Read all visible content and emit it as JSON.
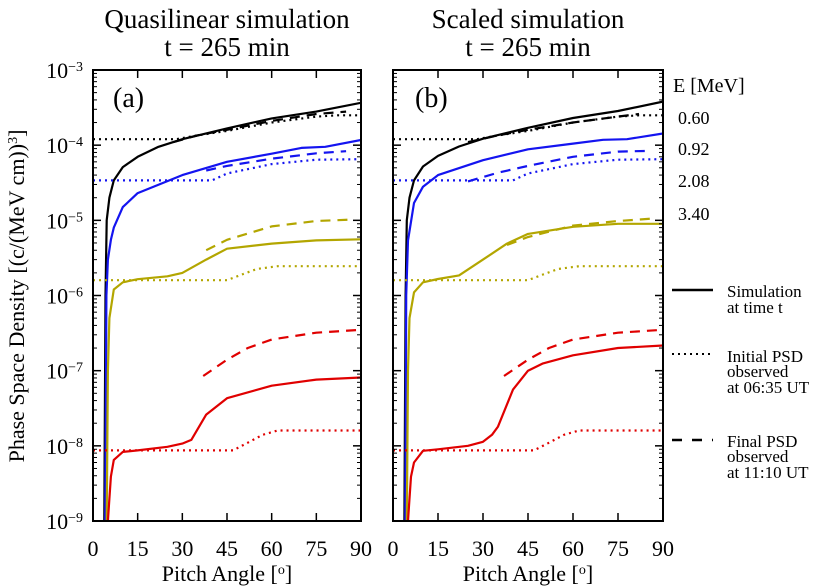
{
  "colors": {
    "0.60": "#000000",
    "0.92": "#1414f0",
    "2.08": "#b3a600",
    "3.40": "#e00000"
  },
  "legend": {
    "energy_header": "E [MeV]",
    "energies": [
      "0.60",
      "0.92",
      "2.08",
      "3.40"
    ],
    "simulation": [
      "Simulation",
      "at time t"
    ],
    "initial": [
      "Initial PSD",
      "observed",
      "at 06:35 UT"
    ],
    "final": [
      "Final PSD",
      "observed",
      "at 11:10 UT"
    ]
  },
  "ylabel": "Phase Space Density [(c/(MeV cm))",
  "ylabel_sup": "3",
  "ylabel_end": "]",
  "xlabel": "Pitch Angle [",
  "xlabel_sup": "o",
  "xlabel_end": "]",
  "chart_data": [
    {
      "type": "line",
      "panel_label": "(a)",
      "title": [
        "Quasilinear simulation",
        "t = 265 min"
      ],
      "x_ticks": [
        "0",
        "15",
        "30",
        "45",
        "60",
        "75",
        "90"
      ],
      "xlim": [
        0,
        90
      ],
      "ylim": [
        1e-09,
        0.001
      ],
      "yscale": "log",
      "y_tick_labels": [
        {
          "base": "10",
          "exp": "−3"
        },
        {
          "base": "10",
          "exp": "−4"
        },
        {
          "base": "10",
          "exp": "−5"
        },
        {
          "base": "10",
          "exp": "−6"
        },
        {
          "base": "10",
          "exp": "−7"
        },
        {
          "base": "10",
          "exp": "−8"
        },
        {
          "base": "10",
          "exp": "−9"
        }
      ],
      "series": [
        {
          "energy": "0.60",
          "kind": "simulation",
          "points": [
            [
              3.8,
              1e-09
            ],
            [
              4.2,
              1e-06
            ],
            [
              4.6,
              1e-05
            ],
            [
              5.5,
              2e-05
            ],
            [
              7,
              3.4e-05
            ],
            [
              10,
              5.1e-05
            ],
            [
              15,
              7e-05
            ],
            [
              22,
              9.5e-05
            ],
            [
              30,
              0.00012
            ],
            [
              45,
              0.000167
            ],
            [
              60,
              0.000227
            ],
            [
              75,
              0.00028
            ],
            [
              90,
              0.000366
            ]
          ]
        },
        {
          "energy": "0.60",
          "kind": "initial",
          "points": [
            [
              0,
              0.00012
            ],
            [
              28,
              0.00012
            ],
            [
              35,
              0.000135
            ],
            [
              45,
              0.000155
            ],
            [
              60,
              0.0002
            ],
            [
              75,
              0.00024
            ],
            [
              82,
              0.00025
            ],
            [
              90,
              0.00025
            ]
          ]
        },
        {
          "energy": "0.60",
          "kind": "final",
          "points": [
            [
              27,
              0.00011
            ],
            [
              35,
              0.000135
            ],
            [
              45,
              0.00016
            ],
            [
              60,
              0.00021
            ],
            [
              75,
              0.00026
            ],
            [
              85,
              0.00028
            ]
          ]
        },
        {
          "energy": "0.92",
          "kind": "simulation",
          "points": [
            [
              4.1,
              1e-09
            ],
            [
              4.5,
              1e-06
            ],
            [
              5,
              3e-06
            ],
            [
              6,
              5.5e-06
            ],
            [
              7,
              8e-06
            ],
            [
              10,
              1.5e-05
            ],
            [
              15,
              2.3e-05
            ],
            [
              30,
              4e-05
            ],
            [
              45,
              6e-05
            ],
            [
              60,
              7.7e-05
            ],
            [
              70,
              9.2e-05
            ],
            [
              78,
              9.5e-05
            ],
            [
              90,
              0.000117
            ]
          ]
        },
        {
          "energy": "0.92",
          "kind": "initial",
          "points": [
            [
              0,
              3.4e-05
            ],
            [
              40,
              3.4e-05
            ],
            [
              45,
              4.2e-05
            ],
            [
              60,
              5.6e-05
            ],
            [
              75,
              6.4e-05
            ],
            [
              90,
              6.5e-05
            ]
          ]
        },
        {
          "energy": "0.92",
          "kind": "final",
          "points": [
            [
              38,
              4.6e-05
            ],
            [
              45,
              5.3e-05
            ],
            [
              60,
              6.6e-05
            ],
            [
              75,
              7.8e-05
            ],
            [
              85,
              8.3e-05
            ]
          ]
        },
        {
          "energy": "2.08",
          "kind": "simulation",
          "points": [
            [
              4.6,
              1e-09
            ],
            [
              5,
              1e-07
            ],
            [
              5.5,
              5e-07
            ],
            [
              7,
              1.2e-06
            ],
            [
              10,
              1.5e-06
            ],
            [
              15,
              1.65e-06
            ],
            [
              25,
              1.8e-06
            ],
            [
              30,
              2e-06
            ],
            [
              38,
              3e-06
            ],
            [
              45,
              4.2e-06
            ],
            [
              60,
              4.9e-06
            ],
            [
              75,
              5.4e-06
            ],
            [
              90,
              5.6e-06
            ]
          ]
        },
        {
          "energy": "2.08",
          "kind": "initial",
          "points": [
            [
              0,
              1.6e-06
            ],
            [
              45,
              1.6e-06
            ],
            [
              50,
              1.9e-06
            ],
            [
              55,
              2.25e-06
            ],
            [
              62,
              2.45e-06
            ],
            [
              90,
              2.45e-06
            ]
          ]
        },
        {
          "energy": "2.08",
          "kind": "final",
          "points": [
            [
              38,
              4e-06
            ],
            [
              45,
              5.5e-06
            ],
            [
              60,
              8.3e-06
            ],
            [
              75,
              9.8e-06
            ],
            [
              86,
              1.02e-05
            ]
          ]
        },
        {
          "energy": "3.40",
          "kind": "simulation",
          "points": [
            [
              5,
              1e-09
            ],
            [
              5.5,
              2e-09
            ],
            [
              6,
              3.9e-09
            ],
            [
              7,
              6.5e-09
            ],
            [
              10,
              8.3e-09
            ],
            [
              15,
              8.7e-09
            ],
            [
              25,
              9.7e-09
            ],
            [
              30,
              1.07e-08
            ],
            [
              33,
              1.2e-08
            ],
            [
              38,
              2.6e-08
            ],
            [
              45,
              4.3e-08
            ],
            [
              60,
              6.3e-08
            ],
            [
              75,
              7.6e-08
            ],
            [
              90,
              8.1e-08
            ]
          ]
        },
        {
          "energy": "3.40",
          "kind": "initial",
          "points": [
            [
              0,
              8.7e-09
            ],
            [
              47,
              8.7e-09
            ],
            [
              52,
              1.1e-08
            ],
            [
              57,
              1.4e-08
            ],
            [
              62,
              1.6e-08
            ],
            [
              90,
              1.6e-08
            ]
          ]
        },
        {
          "energy": "3.40",
          "kind": "final",
          "points": [
            [
              37,
              8.5e-08
            ],
            [
              45,
              1.4e-07
            ],
            [
              52,
              2e-07
            ],
            [
              60,
              2.6e-07
            ],
            [
              75,
              3.2e-07
            ],
            [
              90,
              3.5e-07
            ]
          ]
        }
      ]
    },
    {
      "type": "line",
      "panel_label": "(b)",
      "title": [
        "Scaled simulation",
        "t = 265 min"
      ],
      "x_ticks": [
        "0",
        "15",
        "30",
        "45",
        "60",
        "75",
        "90"
      ],
      "xlim": [
        0,
        90
      ],
      "ylim": [
        1e-09,
        0.001
      ],
      "yscale": "log",
      "y_tick_labels": [],
      "series": [
        {
          "energy": "0.60",
          "kind": "simulation",
          "points": [
            [
              3.8,
              1e-09
            ],
            [
              4.2,
              1e-06
            ],
            [
              4.6,
              1e-05
            ],
            [
              5.5,
              2e-05
            ],
            [
              7,
              3.4e-05
            ],
            [
              10,
              5.2e-05
            ],
            [
              15,
              7.2e-05
            ],
            [
              22,
              9.6e-05
            ],
            [
              30,
              0.000122
            ],
            [
              45,
              0.00017
            ],
            [
              60,
              0.00023
            ],
            [
              75,
              0.000285
            ],
            [
              90,
              0.00038
            ]
          ]
        },
        {
          "energy": "0.60",
          "kind": "initial",
          "points": [
            [
              0,
              0.00012
            ],
            [
              28,
              0.00012
            ],
            [
              35,
              0.000135
            ],
            [
              45,
              0.000155
            ],
            [
              60,
              0.0002
            ],
            [
              75,
              0.00024
            ],
            [
              82,
              0.00025
            ],
            [
              90,
              0.00025
            ]
          ]
        },
        {
          "energy": "0.60",
          "kind": "final",
          "points": [
            [
              25,
              0.00011
            ],
            [
              35,
              0.000135
            ],
            [
              45,
              0.00016
            ],
            [
              60,
              0.0002
            ],
            [
              75,
              0.00024
            ],
            [
              82,
              0.00026
            ]
          ]
        },
        {
          "energy": "0.92",
          "kind": "simulation",
          "points": [
            [
              4.1,
              1e-09
            ],
            [
              4.4,
              1e-06
            ],
            [
              5,
              5.4e-06
            ],
            [
              7,
              1.7e-05
            ],
            [
              10,
              2.8e-05
            ],
            [
              15,
              4e-05
            ],
            [
              30,
              6.3e-05
            ],
            [
              45,
              8.8e-05
            ],
            [
              60,
              0.000105
            ],
            [
              70,
              0.000118
            ],
            [
              78,
              0.00012
            ],
            [
              90,
              0.000143
            ]
          ]
        },
        {
          "energy": "0.92",
          "kind": "initial",
          "points": [
            [
              0,
              3.4e-05
            ],
            [
              40,
              3.4e-05
            ],
            [
              45,
              4.2e-05
            ],
            [
              60,
              5.6e-05
            ],
            [
              75,
              6.4e-05
            ],
            [
              90,
              6.5e-05
            ]
          ]
        },
        {
          "energy": "0.92",
          "kind": "final",
          "points": [
            [
              25,
              3.3e-05
            ],
            [
              35,
              4.3e-05
            ],
            [
              45,
              5.3e-05
            ],
            [
              60,
              7e-05
            ],
            [
              75,
              8.2e-05
            ],
            [
              85,
              8.4e-05
            ]
          ]
        },
        {
          "energy": "2.08",
          "kind": "simulation",
          "points": [
            [
              4.6,
              1e-09
            ],
            [
              5,
              1e-07
            ],
            [
              5.5,
              5e-07
            ],
            [
              7,
              1.1e-06
            ],
            [
              10,
              1.5e-06
            ],
            [
              15,
              1.66e-06
            ],
            [
              22,
              1.85e-06
            ],
            [
              30,
              3e-06
            ],
            [
              38,
              4.9e-06
            ],
            [
              45,
              6.6e-06
            ],
            [
              60,
              8.2e-06
            ],
            [
              75,
              9e-06
            ],
            [
              90,
              9e-06
            ]
          ]
        },
        {
          "energy": "2.08",
          "kind": "initial",
          "points": [
            [
              0,
              1.6e-06
            ],
            [
              45,
              1.6e-06
            ],
            [
              50,
              1.9e-06
            ],
            [
              55,
              2.25e-06
            ],
            [
              62,
              2.45e-06
            ],
            [
              90,
              2.45e-06
            ]
          ]
        },
        {
          "energy": "2.08",
          "kind": "final",
          "points": [
            [
              38,
              4.7e-06
            ],
            [
              45,
              6e-06
            ],
            [
              60,
              8.5e-06
            ],
            [
              75,
              9.8e-06
            ],
            [
              86,
              1.05e-05
            ]
          ]
        },
        {
          "energy": "3.40",
          "kind": "simulation",
          "points": [
            [
              5,
              1e-09
            ],
            [
              5.5,
              2e-09
            ],
            [
              6,
              3.9e-09
            ],
            [
              7,
              6e-09
            ],
            [
              10,
              8.6e-09
            ],
            [
              15,
              9e-09
            ],
            [
              25,
              1e-08
            ],
            [
              30,
              1.13e-08
            ],
            [
              33,
              1.4e-08
            ],
            [
              35,
              1.8e-08
            ],
            [
              40,
              5.6e-08
            ],
            [
              45,
              1e-07
            ],
            [
              50,
              1.25e-07
            ],
            [
              60,
              1.6e-07
            ],
            [
              75,
              2e-07
            ],
            [
              90,
              2.16e-07
            ]
          ]
        },
        {
          "energy": "3.40",
          "kind": "initial",
          "points": [
            [
              0,
              8.7e-09
            ],
            [
              47,
              8.7e-09
            ],
            [
              52,
              1.1e-08
            ],
            [
              57,
              1.4e-08
            ],
            [
              62,
              1.6e-08
            ],
            [
              90,
              1.6e-08
            ]
          ]
        },
        {
          "energy": "3.40",
          "kind": "final",
          "points": [
            [
              37,
              8.5e-08
            ],
            [
              45,
              1.4e-07
            ],
            [
              52,
              2e-07
            ],
            [
              60,
              2.6e-07
            ],
            [
              75,
              3.2e-07
            ],
            [
              90,
              3.5e-07
            ]
          ]
        }
      ]
    }
  ]
}
